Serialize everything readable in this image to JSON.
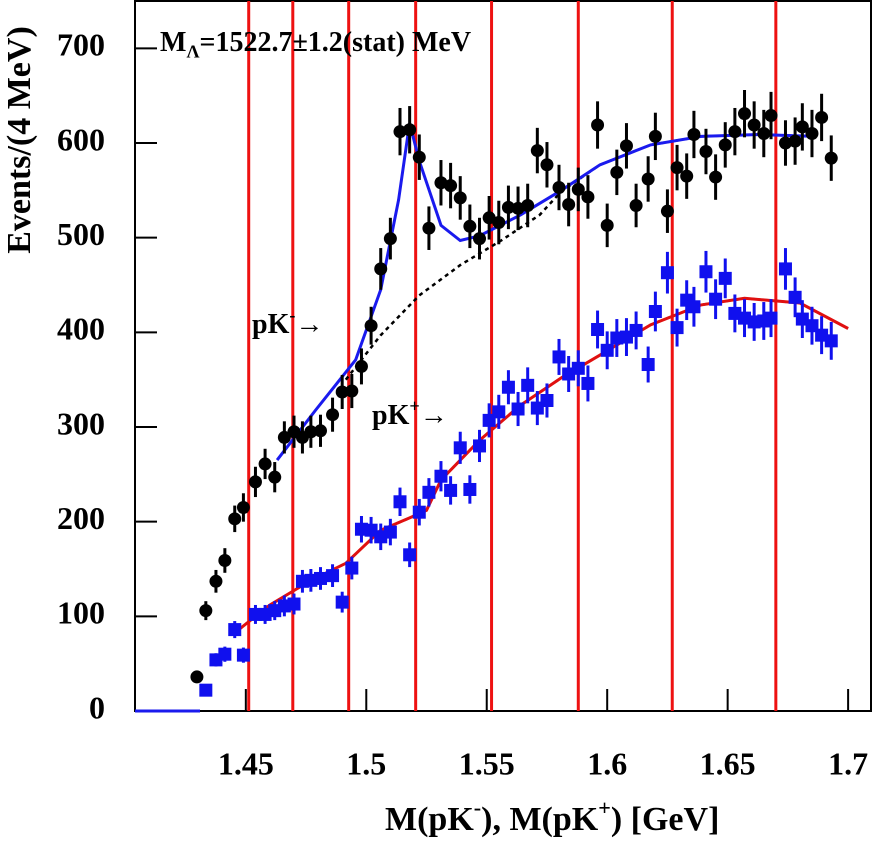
{
  "chart_data": {
    "type": "scatter",
    "y_label": "Events/(4 MeV)",
    "x_label": [
      {
        "text": "M(pK"
      },
      {
        "sup": "-"
      },
      {
        "text": "),  M(pK"
      },
      {
        "sup": "+"
      },
      {
        "text": ")      [GeV]"
      }
    ],
    "annotations": [
      {
        "parts": [
          {
            "text": "M"
          },
          {
            "sub": "Λ"
          },
          {
            "text": "=1522.7±1.2(stat) MeV"
          }
        ]
      },
      {
        "parts": [
          {
            "text": "pK"
          },
          {
            "sup": "-"
          },
          {
            "text": "→"
          }
        ]
      },
      {
        "parts": [
          {
            "text": "pK"
          },
          {
            "sup": "+"
          },
          {
            "text": "→"
          }
        ]
      }
    ],
    "xlim": [
      1.404,
      1.7095
    ],
    "ylim": [
      0,
      750
    ],
    "xticks": [
      1.45,
      1.5,
      1.55,
      1.6,
      1.65,
      1.7
    ],
    "yticks": [
      0,
      100,
      200,
      300,
      400,
      500,
      600,
      700
    ],
    "vlines": {
      "color": "#ee1111",
      "x": [
        1.4512,
        1.4695,
        1.4927,
        1.5205,
        1.552,
        1.588,
        1.627,
        1.67
      ]
    },
    "series": [
      {
        "color": "#000000",
        "marker": "circle",
        "x": [
          1.4297,
          1.4334,
          1.4376,
          1.4413,
          1.4454,
          1.449,
          1.454,
          1.458,
          1.462,
          1.466,
          1.47,
          1.4735,
          1.477,
          1.481,
          1.486,
          1.49,
          1.494,
          1.498,
          1.502,
          1.506,
          1.51,
          1.514,
          1.518,
          1.522,
          1.526,
          1.531,
          1.535,
          1.539,
          1.543,
          1.547,
          1.551,
          1.555,
          1.559,
          1.563,
          1.567,
          1.571,
          1.575,
          1.58,
          1.584,
          1.588,
          1.592,
          1.596,
          1.6,
          1.604,
          1.608,
          1.612,
          1.617,
          1.62,
          1.625,
          1.629,
          1.633,
          1.636,
          1.641,
          1.645,
          1.649,
          1.653,
          1.657,
          1.661,
          1.665,
          1.668,
          1.674,
          1.678,
          1.681,
          1.685,
          1.689,
          1.693
        ],
        "values": [
          36,
          106,
          137,
          159,
          203,
          215,
          242,
          261,
          247,
          289,
          295,
          289,
          295,
          296,
          313,
          337,
          338,
          364,
          407,
          467,
          499,
          612,
          614,
          585,
          510,
          558,
          555,
          542,
          512,
          499,
          521,
          516,
          532,
          531,
          534,
          592,
          577,
          553,
          535,
          551,
          543,
          619,
          513,
          569,
          597,
          534,
          562,
          607,
          528,
          574,
          565,
          609,
          591,
          564,
          598,
          612,
          631,
          619,
          610,
          629,
          600,
          602,
          617,
          610,
          627,
          584
        ],
        "errors": [
          6,
          10,
          12,
          13,
          14,
          15,
          16,
          16,
          16,
          17,
          17,
          17,
          17,
          17,
          18,
          18,
          18,
          19,
          20,
          22,
          22,
          25,
          25,
          24,
          23,
          24,
          24,
          23,
          23,
          22,
          23,
          23,
          23,
          23,
          23,
          24,
          24,
          24,
          23,
          23,
          23,
          25,
          23,
          24,
          24,
          23,
          24,
          25,
          23,
          24,
          24,
          25,
          24,
          24,
          24,
          25,
          25,
          25,
          25,
          25,
          24,
          25,
          25,
          25,
          25,
          24
        ]
      },
      {
        "color": "#1010ee",
        "marker": "square",
        "x": [
          1.4334,
          1.4376,
          1.4413,
          1.4454,
          1.449,
          1.454,
          1.458,
          1.462,
          1.466,
          1.47,
          1.4735,
          1.477,
          1.481,
          1.486,
          1.49,
          1.494,
          1.498,
          1.502,
          1.506,
          1.51,
          1.514,
          1.518,
          1.522,
          1.526,
          1.531,
          1.535,
          1.539,
          1.543,
          1.547,
          1.551,
          1.555,
          1.559,
          1.563,
          1.567,
          1.571,
          1.575,
          1.58,
          1.584,
          1.588,
          1.592,
          1.596,
          1.6,
          1.604,
          1.608,
          1.612,
          1.617,
          1.62,
          1.625,
          1.629,
          1.633,
          1.636,
          1.641,
          1.645,
          1.649,
          1.653,
          1.657,
          1.661,
          1.665,
          1.668,
          1.674,
          1.678,
          1.681,
          1.685,
          1.689,
          1.693
        ],
        "values": [
          22,
          54,
          60,
          86,
          59,
          102,
          102,
          106,
          111,
          113,
          137,
          138,
          140,
          143,
          115,
          151,
          192,
          191,
          184,
          189,
          221,
          165,
          210,
          231,
          248,
          233,
          278,
          234,
          280,
          307,
          316,
          342,
          319,
          344,
          320,
          328,
          374,
          356,
          362,
          346,
          403,
          381,
          394,
          395,
          402,
          366,
          422,
          463,
          405,
          434,
          427,
          464,
          435,
          457,
          420,
          415,
          411,
          412,
          415,
          467,
          437,
          414,
          407,
          397,
          391
        ],
        "errors": [
          5,
          7,
          8,
          9,
          8,
          10,
          10,
          10,
          11,
          11,
          12,
          12,
          12,
          12,
          11,
          12,
          14,
          14,
          14,
          14,
          15,
          13,
          14,
          15,
          16,
          15,
          17,
          15,
          17,
          18,
          18,
          18,
          18,
          19,
          18,
          18,
          19,
          19,
          19,
          19,
          20,
          20,
          20,
          20,
          20,
          19,
          21,
          22,
          20,
          21,
          21,
          22,
          21,
          21,
          20,
          20,
          20,
          20,
          20,
          22,
          21,
          20,
          20,
          20,
          20
        ]
      }
    ],
    "curves": [
      {
        "color": "#000000",
        "dash": true,
        "x": [
          1.4915,
          1.506,
          1.522,
          1.539,
          1.556,
          1.572,
          1.581,
          1.597,
          1.618,
          1.639,
          1.663,
          1.686
        ],
        "values": [
          350,
          397,
          439,
          471,
          497,
          524,
          549,
          577,
          598,
          607,
          609,
          607
        ]
      },
      {
        "color": "#1a1aee",
        "dash": false,
        "x": [
          1.404,
          1.431,
          1.4485,
          1.463,
          1.479,
          1.4956,
          1.506,
          1.5134,
          1.518,
          1.522,
          1.531,
          1.539,
          1.547,
          1.564,
          1.581,
          1.597,
          1.618,
          1.639,
          1.663,
          1.686
        ],
        "values": [
          0,
          0,
          null,
          265,
          318,
          371,
          445,
          540,
          621,
          581,
          513,
          497,
          502,
          524,
          550,
          577,
          598,
          607,
          609,
          607
        ]
      },
      {
        "color": "#000000",
        "dash": true,
        "x": [
          1.4446,
          1.46,
          1.477,
          1.4915,
          1.506,
          1.518,
          1.525,
          1.531,
          1.547,
          1.564,
          1.581,
          1.597,
          1.618,
          1.639,
          1.657,
          1.68,
          1.7
        ],
        "values": [
          81,
          112,
          138,
          156,
          191,
          204,
          212,
          244,
          286,
          323,
          352,
          376,
          408,
          429,
          436,
          431,
          404
        ]
      },
      {
        "color": "#e01010",
        "dash": false,
        "x": [
          1.4446,
          1.46,
          1.477,
          1.4915,
          1.506,
          1.518,
          1.525,
          1.531,
          1.547,
          1.564,
          1.581,
          1.597,
          1.618,
          1.639,
          1.657,
          1.68,
          1.7
        ],
        "values": [
          81,
          112,
          138,
          156,
          191,
          204,
          212,
          244,
          286,
          323,
          352,
          376,
          408,
          429,
          436,
          431,
          404
        ]
      }
    ]
  }
}
